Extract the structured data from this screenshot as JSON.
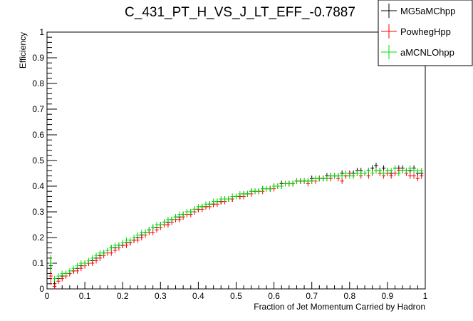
{
  "chart_data": {
    "type": "scatter",
    "title": "C_431_PT_H_VS_J_LT_EFF_-0.7887",
    "xlabel": "Fraction of Jet Momentum Carried by Hadron",
    "ylabel": "Efficiency",
    "xlim": [
      0,
      1
    ],
    "ylim": [
      0,
      1
    ],
    "x_ticks": [
      "0",
      "0.1",
      "0.2",
      "0.3",
      "0.4",
      "0.5",
      "0.6",
      "0.7",
      "0.8",
      "0.9",
      "1"
    ],
    "y_ticks": [
      "0",
      "0.1",
      "0.2",
      "0.3",
      "0.4",
      "0.5",
      "0.6",
      "0.7",
      "0.8",
      "0.9",
      "1"
    ],
    "grid": false,
    "legend_position": "top-right",
    "colors": {
      "MG5aMChpp": "#000000",
      "PowhegHpp": "#ff0000",
      "aMCNLOhpp": "#00dd00"
    },
    "x": [
      0.01,
      0.02,
      0.03,
      0.04,
      0.05,
      0.06,
      0.07,
      0.08,
      0.09,
      0.1,
      0.11,
      0.12,
      0.13,
      0.14,
      0.15,
      0.16,
      0.17,
      0.18,
      0.19,
      0.2,
      0.21,
      0.22,
      0.23,
      0.24,
      0.25,
      0.26,
      0.27,
      0.28,
      0.29,
      0.3,
      0.31,
      0.32,
      0.33,
      0.34,
      0.35,
      0.36,
      0.37,
      0.38,
      0.39,
      0.4,
      0.41,
      0.42,
      0.43,
      0.44,
      0.45,
      0.46,
      0.47,
      0.48,
      0.49,
      0.5,
      0.51,
      0.52,
      0.53,
      0.54,
      0.55,
      0.56,
      0.57,
      0.58,
      0.59,
      0.6,
      0.61,
      0.62,
      0.63,
      0.64,
      0.65,
      0.66,
      0.67,
      0.68,
      0.69,
      0.7,
      0.71,
      0.72,
      0.73,
      0.74,
      0.75,
      0.76,
      0.77,
      0.78,
      0.79,
      0.8,
      0.81,
      0.82,
      0.83,
      0.84,
      0.85,
      0.86,
      0.87,
      0.88,
      0.89,
      0.9,
      0.91,
      0.92,
      0.93,
      0.94,
      0.95,
      0.96,
      0.97,
      0.98,
      0.99
    ],
    "series": [
      {
        "name": "MG5aMChpp",
        "values": [
          0.09,
          0.02,
          0.04,
          0.05,
          0.06,
          0.06,
          0.07,
          0.08,
          0.09,
          0.1,
          0.1,
          0.11,
          0.12,
          0.13,
          0.14,
          0.15,
          0.16,
          0.16,
          0.17,
          0.17,
          0.18,
          0.18,
          0.19,
          0.2,
          0.21,
          0.22,
          0.23,
          0.24,
          0.24,
          0.25,
          0.26,
          0.26,
          0.27,
          0.28,
          0.28,
          0.29,
          0.3,
          0.3,
          0.31,
          0.31,
          0.32,
          0.32,
          0.33,
          0.33,
          0.34,
          0.34,
          0.35,
          0.35,
          0.35,
          0.36,
          0.36,
          0.37,
          0.37,
          0.38,
          0.38,
          0.38,
          0.39,
          0.39,
          0.39,
          0.4,
          0.4,
          0.41,
          0.41,
          0.41,
          0.41,
          0.42,
          0.42,
          0.42,
          0.42,
          0.43,
          0.43,
          0.43,
          0.43,
          0.44,
          0.44,
          0.44,
          0.44,
          0.45,
          0.44,
          0.45,
          0.45,
          0.46,
          0.46,
          0.45,
          0.46,
          0.47,
          0.48,
          0.46,
          0.47,
          0.46,
          0.45,
          0.47,
          0.47,
          0.47,
          0.46,
          0.46,
          0.47,
          0.45,
          0.45
        ]
      },
      {
        "name": "PowhegHpp",
        "values": [
          0.05,
          0.01,
          0.03,
          0.04,
          0.05,
          0.06,
          0.07,
          0.07,
          0.08,
          0.09,
          0.1,
          0.1,
          0.11,
          0.12,
          0.13,
          0.14,
          0.14,
          0.15,
          0.16,
          0.17,
          0.17,
          0.18,
          0.19,
          0.19,
          0.2,
          0.21,
          0.22,
          0.22,
          0.23,
          0.24,
          0.25,
          0.25,
          0.26,
          0.27,
          0.27,
          0.28,
          0.29,
          0.29,
          0.3,
          0.31,
          0.31,
          0.32,
          0.32,
          0.33,
          0.33,
          0.34,
          0.34,
          0.35,
          0.35,
          0.36,
          0.36,
          0.36,
          0.37,
          0.37,
          0.38,
          0.38,
          0.38,
          0.39,
          0.39,
          0.39,
          0.4,
          0.4,
          0.41,
          0.41,
          0.41,
          0.42,
          0.42,
          0.42,
          0.41,
          0.42,
          0.42,
          0.43,
          0.43,
          0.43,
          0.43,
          0.44,
          0.43,
          0.42,
          0.44,
          0.45,
          0.44,
          0.45,
          0.44,
          0.45,
          0.44,
          0.45,
          0.46,
          0.45,
          0.44,
          0.45,
          0.44,
          0.45,
          0.46,
          0.46,
          0.45,
          0.44,
          0.44,
          0.43,
          0.44
        ]
      },
      {
        "name": "aMCNLOhpp",
        "values": [
          0.1,
          0.04,
          0.05,
          0.06,
          0.06,
          0.07,
          0.08,
          0.09,
          0.1,
          0.1,
          0.11,
          0.12,
          0.13,
          0.14,
          0.14,
          0.15,
          0.16,
          0.17,
          0.17,
          0.18,
          0.19,
          0.19,
          0.2,
          0.21,
          0.22,
          0.22,
          0.23,
          0.24,
          0.25,
          0.25,
          0.26,
          0.27,
          0.27,
          0.28,
          0.29,
          0.29,
          0.3,
          0.3,
          0.31,
          0.32,
          0.32,
          0.33,
          0.33,
          0.34,
          0.34,
          0.35,
          0.35,
          0.35,
          0.36,
          0.36,
          0.37,
          0.37,
          0.37,
          0.38,
          0.38,
          0.38,
          0.39,
          0.39,
          0.39,
          0.4,
          0.4,
          0.4,
          0.41,
          0.41,
          0.41,
          0.42,
          0.42,
          0.42,
          0.42,
          0.42,
          0.43,
          0.43,
          0.43,
          0.43,
          0.44,
          0.44,
          0.44,
          0.44,
          0.45,
          0.44,
          0.44,
          0.45,
          0.45,
          0.45,
          0.46,
          0.45,
          0.46,
          0.46,
          0.45,
          0.46,
          0.46,
          0.47,
          0.45,
          0.46,
          0.46,
          0.47,
          0.46,
          0.46,
          0.46
        ]
      }
    ]
  }
}
